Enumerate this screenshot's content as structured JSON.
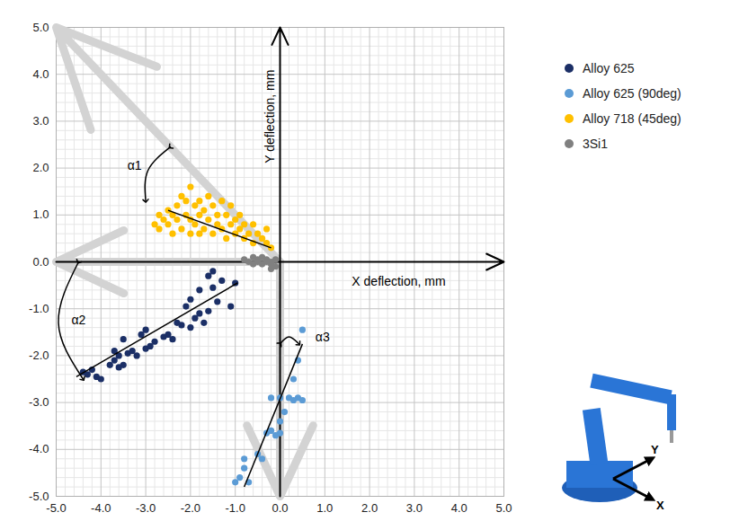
{
  "chart_data": {
    "type": "scatter",
    "x_label": "X deflection, mm",
    "y_label": "Y deflection, mm",
    "xlim": [
      -5,
      5
    ],
    "ylim": [
      -5,
      5
    ],
    "xticks": [
      {
        "value": -5,
        "label": "-5.0"
      },
      {
        "value": -4,
        "label": "-4.0"
      },
      {
        "value": -3,
        "label": "-3.0"
      },
      {
        "value": -2,
        "label": "-2.0"
      },
      {
        "value": -1,
        "label": "-1.0"
      },
      {
        "value": 0,
        "label": "0.0"
      },
      {
        "value": 1,
        "label": "1.0"
      },
      {
        "value": 2,
        "label": "2.0"
      },
      {
        "value": 3,
        "label": "3.0"
      },
      {
        "value": 4,
        "label": "4.0"
      },
      {
        "value": 5,
        "label": "5.0"
      }
    ],
    "yticks": [
      {
        "value": -5,
        "label": "-5.0"
      },
      {
        "value": -4,
        "label": "-4.0"
      },
      {
        "value": -3,
        "label": "-3.0"
      },
      {
        "value": -2,
        "label": "-2.0"
      },
      {
        "value": -1,
        "label": "-1.0"
      },
      {
        "value": 0,
        "label": "0.0"
      },
      {
        "value": 1,
        "label": "1.0"
      },
      {
        "value": 2,
        "label": "2.0"
      },
      {
        "value": 3,
        "label": "3.0"
      },
      {
        "value": 4,
        "label": "4.0"
      },
      {
        "value": 5,
        "label": "5.0"
      }
    ],
    "grid": true,
    "legend": "top right",
    "series": [
      {
        "name": "Alloy 625",
        "color": "#1b2f66",
        "marker": "circle",
        "points": [
          [
            -4.4,
            -2.35
          ],
          [
            -4.3,
            -2.4
          ],
          [
            -4.2,
            -2.3
          ],
          [
            -4.1,
            -2.45
          ],
          [
            -4.0,
            -2.5
          ],
          [
            -3.8,
            -2.2
          ],
          [
            -3.7,
            -2.1
          ],
          [
            -3.7,
            -1.9
          ],
          [
            -3.6,
            -2.0
          ],
          [
            -3.6,
            -2.25
          ],
          [
            -3.5,
            -1.65
          ],
          [
            -3.5,
            -2.2
          ],
          [
            -3.4,
            -1.95
          ],
          [
            -3.3,
            -1.9
          ],
          [
            -3.2,
            -2.0
          ],
          [
            -3.1,
            -1.55
          ],
          [
            -3.0,
            -1.45
          ],
          [
            -3.0,
            -1.85
          ],
          [
            -2.9,
            -1.8
          ],
          [
            -2.8,
            -1.7
          ],
          [
            -2.6,
            -1.6
          ],
          [
            -2.5,
            -1.55
          ],
          [
            -2.4,
            -1.65
          ],
          [
            -2.3,
            -1.3
          ],
          [
            -2.2,
            -1.35
          ],
          [
            -2.1,
            -0.95
          ],
          [
            -2.0,
            -1.4
          ],
          [
            -2.0,
            -0.8
          ],
          [
            -1.9,
            -1.2
          ],
          [
            -1.8,
            -1.1
          ],
          [
            -1.8,
            -0.6
          ],
          [
            -1.7,
            -1.3
          ],
          [
            -1.6,
            -1.05
          ],
          [
            -1.5,
            -0.55
          ],
          [
            -1.4,
            -0.85
          ],
          [
            -1.3,
            -0.4
          ],
          [
            -1.1,
            -0.95
          ],
          [
            -1.0,
            -0.45
          ],
          [
            -1.5,
            -0.2
          ],
          [
            -1.6,
            -0.3
          ]
        ]
      },
      {
        "name": "Alloy 625 (90deg)",
        "color": "#5b9bd5",
        "marker": "circle",
        "points": [
          [
            -1.0,
            -4.7
          ],
          [
            -0.9,
            -4.6
          ],
          [
            -0.8,
            -4.4
          ],
          [
            -0.8,
            -4.2
          ],
          [
            -0.7,
            -4.7
          ],
          [
            -0.5,
            -4.1
          ],
          [
            -0.4,
            -4.2
          ],
          [
            -0.3,
            -3.65
          ],
          [
            -0.2,
            -3.6
          ],
          [
            -0.2,
            -2.9
          ],
          [
            -0.1,
            -3.7
          ],
          [
            0.0,
            -2.9
          ],
          [
            0.0,
            -3.65
          ],
          [
            0.0,
            -3.4
          ],
          [
            0.1,
            -3.2
          ],
          [
            0.2,
            -2.9
          ],
          [
            0.3,
            -2.5
          ],
          [
            0.3,
            -2.95
          ],
          [
            0.4,
            -2.1
          ],
          [
            0.4,
            -2.9
          ],
          [
            0.5,
            -2.95
          ],
          [
            0.5,
            -1.45
          ]
        ]
      },
      {
        "name": "Alloy 718 (45deg)",
        "color": "#ffc000",
        "marker": "circle",
        "points": [
          [
            -2.8,
            0.8
          ],
          [
            -2.7,
            1.0
          ],
          [
            -2.7,
            0.7
          ],
          [
            -2.6,
            0.9
          ],
          [
            -2.5,
            1.1
          ],
          [
            -2.5,
            0.8
          ],
          [
            -2.4,
            1.0
          ],
          [
            -2.4,
            0.6
          ],
          [
            -2.3,
            1.2
          ],
          [
            -2.3,
            0.9
          ],
          [
            -2.2,
            0.7
          ],
          [
            -2.2,
            1.4
          ],
          [
            -2.1,
            1.0
          ],
          [
            -2.1,
            1.3
          ],
          [
            -2.0,
            1.6
          ],
          [
            -2.0,
            0.9
          ],
          [
            -2.0,
            0.6
          ],
          [
            -1.9,
            1.2
          ],
          [
            -1.9,
            0.8
          ],
          [
            -1.8,
            1.3
          ],
          [
            -1.8,
            1.0
          ],
          [
            -1.8,
            0.6
          ],
          [
            -1.7,
            1.1
          ],
          [
            -1.7,
            0.7
          ],
          [
            -1.6,
            0.9
          ],
          [
            -1.6,
            1.4
          ],
          [
            -1.5,
            1.2
          ],
          [
            -1.5,
            0.6
          ],
          [
            -1.4,
            1.0
          ],
          [
            -1.4,
            0.8
          ],
          [
            -1.3,
            1.3
          ],
          [
            -1.3,
            0.7
          ],
          [
            -1.2,
            1.0
          ],
          [
            -1.2,
            0.5
          ],
          [
            -1.1,
            0.8
          ],
          [
            -1.1,
            1.2
          ],
          [
            -1.0,
            0.9
          ],
          [
            -1.0,
            0.6
          ],
          [
            -0.9,
            0.7
          ],
          [
            -0.9,
            1.0
          ],
          [
            -0.8,
            0.8
          ],
          [
            -0.8,
            0.5
          ],
          [
            -0.7,
            0.6
          ],
          [
            -0.6,
            0.8
          ],
          [
            -0.6,
            0.4
          ],
          [
            -0.5,
            0.6
          ],
          [
            -0.4,
            0.5
          ],
          [
            -0.3,
            0.7
          ],
          [
            -0.3,
            0.4
          ],
          [
            -0.2,
            0.3
          ]
        ]
      },
      {
        "name": "3Si1",
        "color": "#808080",
        "marker": "circle",
        "points": [
          [
            -0.8,
            0.05
          ],
          [
            -0.7,
            0.0
          ],
          [
            -0.6,
            0.1
          ],
          [
            -0.6,
            -0.05
          ],
          [
            -0.5,
            0.05
          ],
          [
            -0.5,
            0.0
          ],
          [
            -0.4,
            0.1
          ],
          [
            -0.4,
            -0.05
          ],
          [
            -0.3,
            0.0
          ],
          [
            -0.3,
            0.05
          ],
          [
            -0.2,
            -0.05
          ],
          [
            -0.2,
            0.0
          ],
          [
            -0.1,
            0.05
          ],
          [
            -0.1,
            -0.1
          ],
          [
            -0.2,
            -0.15
          ]
        ]
      }
    ],
    "trend_lines": [
      {
        "from": [
          -4.55,
          -2.45
        ],
        "to": [
          -0.95,
          -0.45
        ]
      },
      {
        "from": [
          -0.8,
          -4.8
        ],
        "to": [
          0.5,
          -1.75
        ]
      },
      {
        "from": [
          -2.5,
          1.1
        ],
        "to": [
          -0.2,
          0.3
        ]
      }
    ],
    "reference_arrows": [
      {
        "from": [
          0,
          0
        ],
        "to": [
          -5,
          5
        ]
      },
      {
        "from": [
          0,
          0
        ],
        "to": [
          -5,
          0
        ]
      },
      {
        "from": [
          0,
          0
        ],
        "to": [
          0,
          -5
        ]
      }
    ],
    "annotations": [
      {
        "text": "α1",
        "x": -3.25,
        "y": 2.05,
        "arc": [
          [
            -2.45,
            2.45
          ],
          [
            -2.95,
            1.95
          ],
          [
            -3.0,
            1.3
          ]
        ]
      },
      {
        "text": "α2",
        "x": -4.5,
        "y": -1.25,
        "arc": [
          [
            -4.5,
            0.0
          ],
          [
            -4.95,
            -1.3
          ],
          [
            -4.4,
            -2.5
          ]
        ]
      },
      {
        "text": "α3",
        "x": 0.95,
        "y": -1.6,
        "arc": [
          [
            0.0,
            -1.75
          ],
          [
            0.2,
            -1.6
          ],
          [
            0.42,
            -1.75
          ]
        ]
      }
    ],
    "inset_labels": [
      "Y",
      "X"
    ]
  }
}
